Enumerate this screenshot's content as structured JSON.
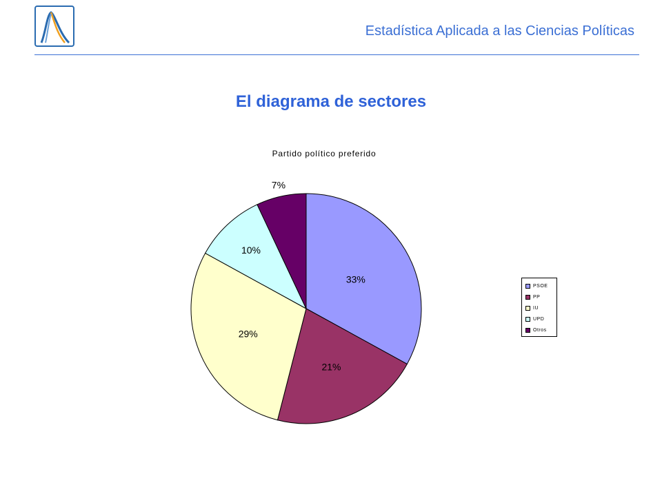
{
  "header": {
    "title": "Estadística Aplicada a las Ciencias Políticas"
  },
  "slide": {
    "title": "El diagrama de sectores"
  },
  "chart_data": {
    "type": "pie",
    "title": "Partido político preferido",
    "categories": [
      "PSOE",
      "PP",
      "IU",
      "UPD",
      "Otros"
    ],
    "values": [
      33,
      21,
      29,
      10,
      7
    ],
    "labels": [
      "33%",
      "21%",
      "29%",
      "10%",
      "7%"
    ],
    "colors": [
      "#9999ff",
      "#993366",
      "#ffffcc",
      "#ccffff",
      "#660066"
    ],
    "legend_position": "right"
  }
}
